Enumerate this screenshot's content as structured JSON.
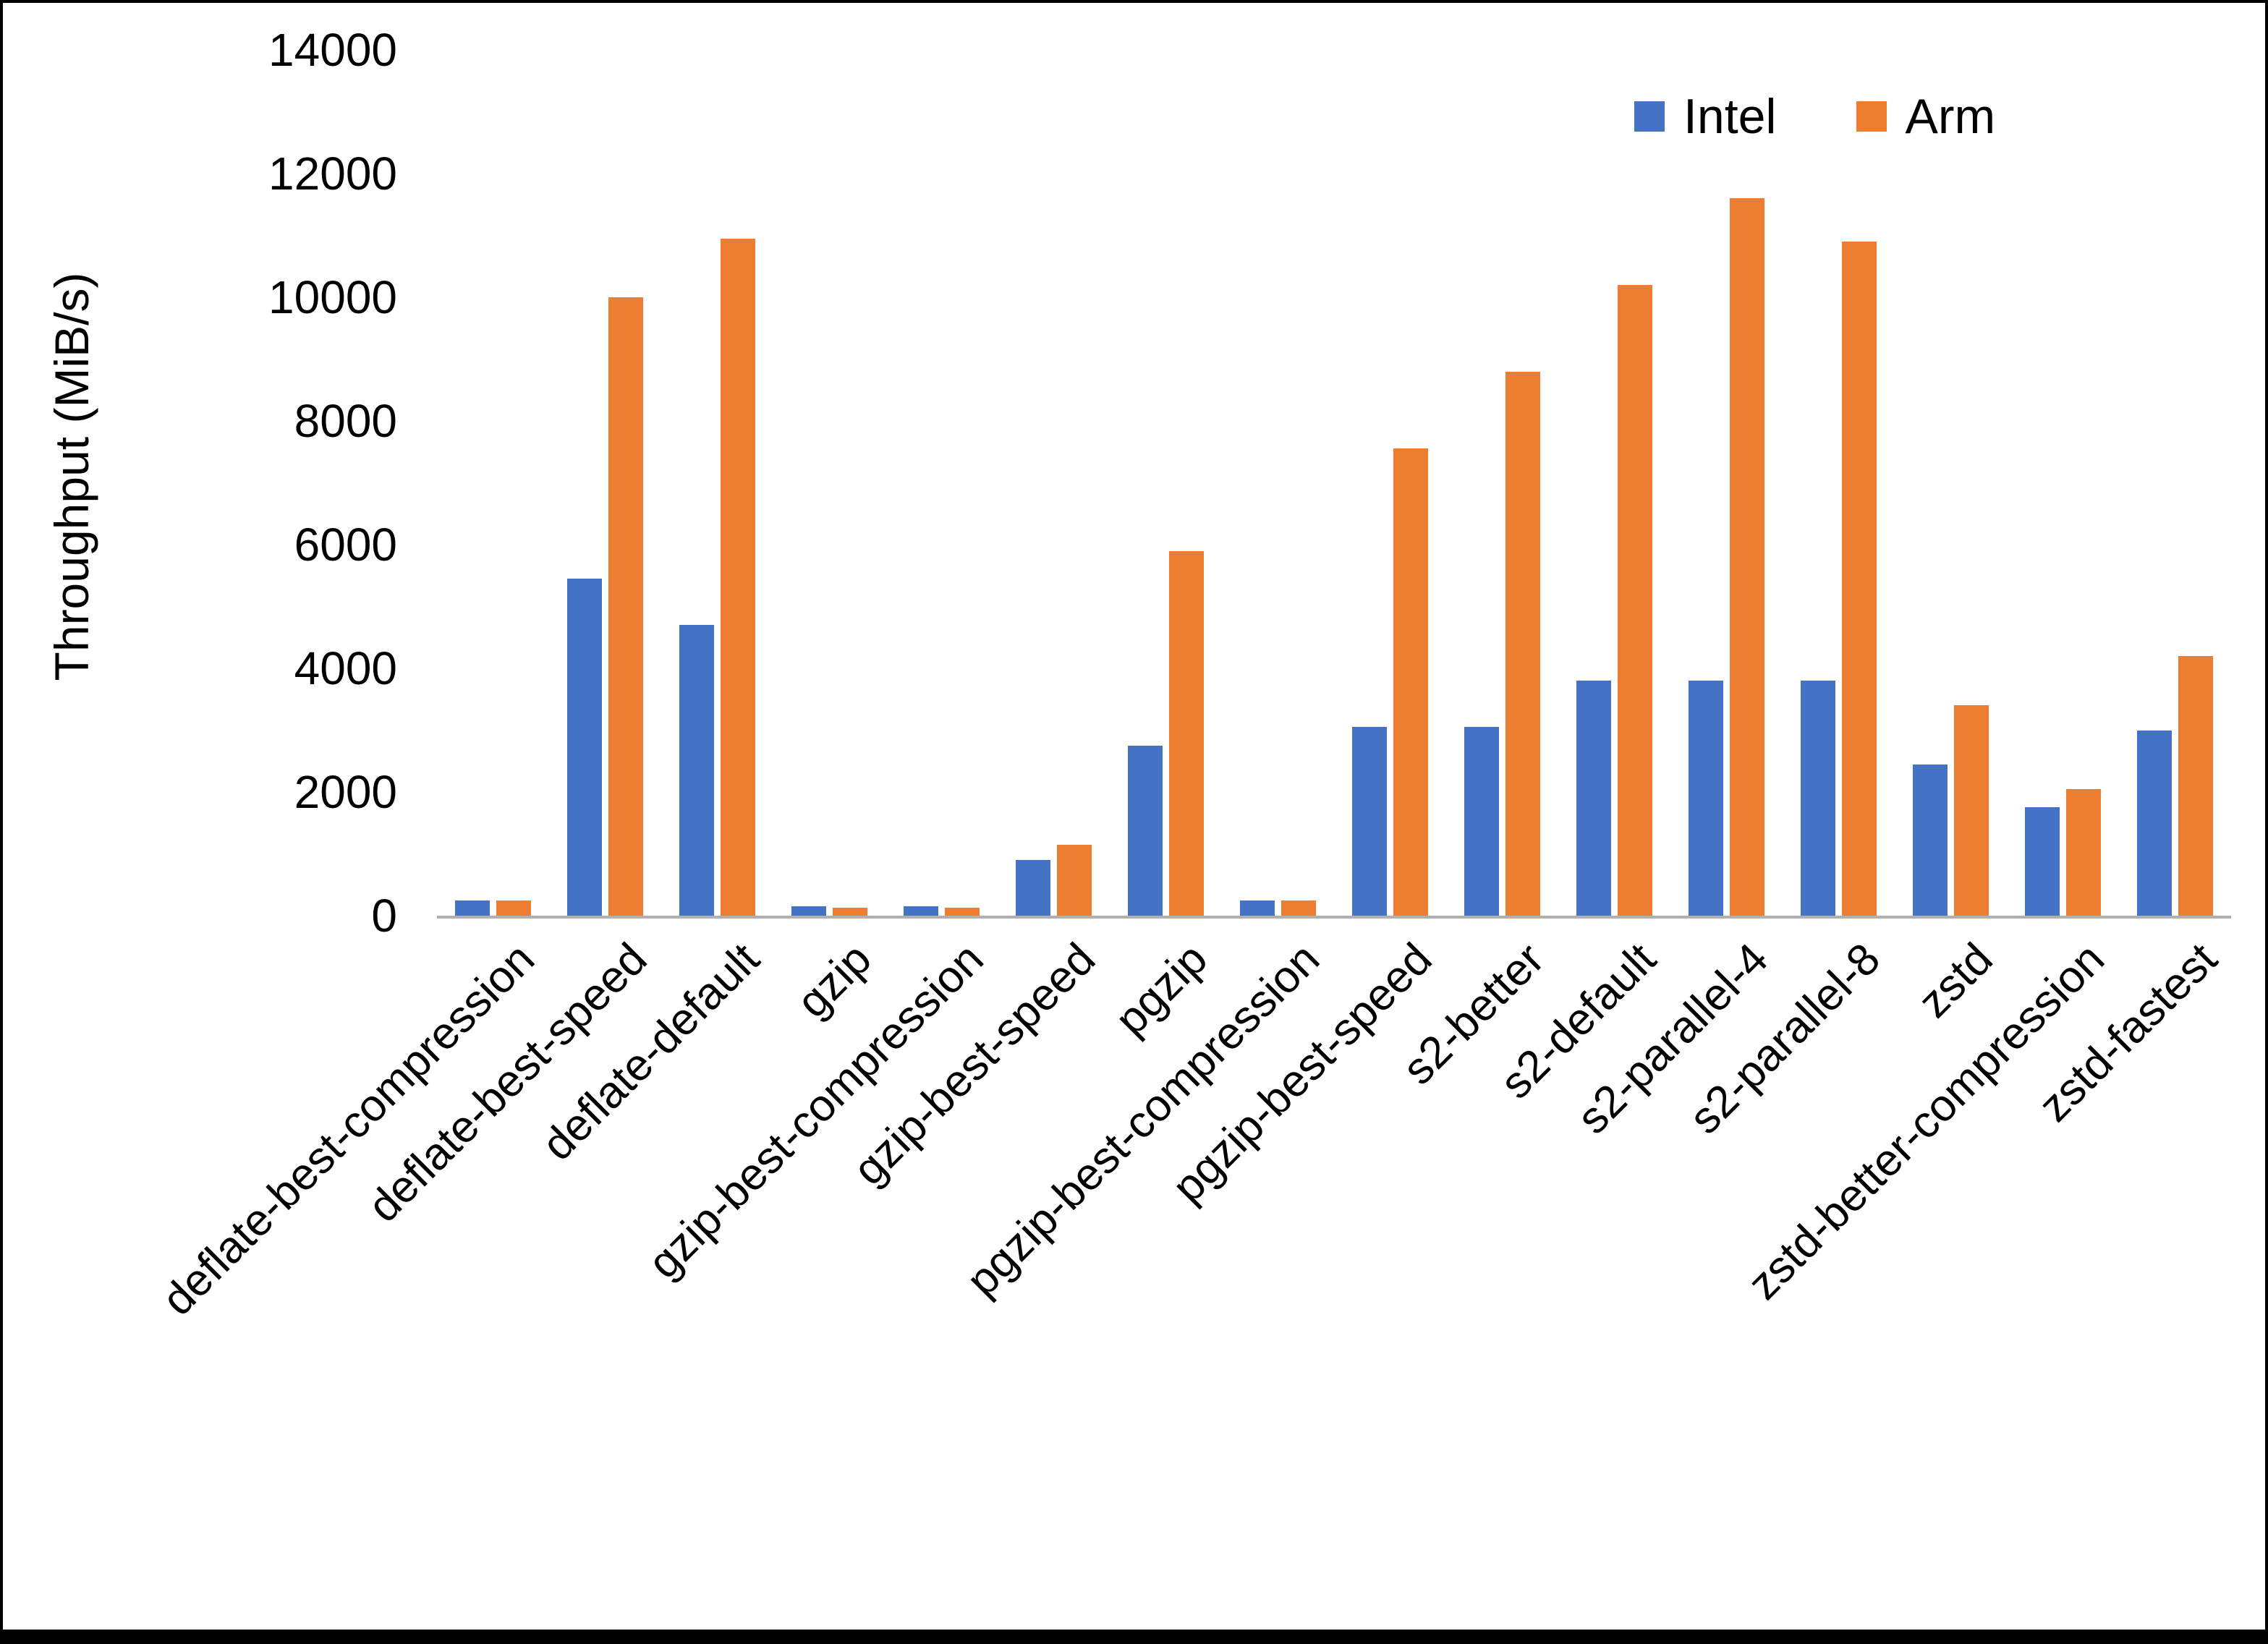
{
  "chart_data": {
    "type": "bar",
    "title": "",
    "xlabel": "",
    "ylabel": "Throughput (MiB/s)",
    "ylim": [
      0,
      14000
    ],
    "ytick_step": 2000,
    "grid": false,
    "legend_position": "top-right",
    "categories": [
      "deflate-best-compression",
      "deflate-best-speed",
      "deflate-default",
      "gzip",
      "gzip-best-compression",
      "gzip-best-speed",
      "pgzip",
      "pgzip-best-compression",
      "pgzip-best-speed",
      "s2-better",
      "s2-default",
      "s2-parallel-4",
      "s2-parallel-8",
      "zstd",
      "zstd-better-compression",
      "zstd-fastest"
    ],
    "series": [
      {
        "name": "Intel",
        "color": "#4472C4",
        "values": [
          250,
          5450,
          4700,
          150,
          150,
          900,
          2750,
          250,
          3050,
          3050,
          3800,
          3800,
          3800,
          2450,
          1750,
          3000
        ]
      },
      {
        "name": "Arm",
        "color": "#ED7D31",
        "values": [
          240,
          10000,
          10950,
          130,
          130,
          1150,
          5900,
          250,
          7550,
          8800,
          10200,
          11600,
          10900,
          3400,
          2050,
          4200
        ]
      }
    ]
  }
}
